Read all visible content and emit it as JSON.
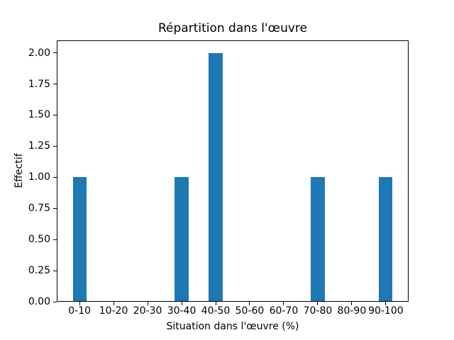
{
  "chart_data": {
    "type": "bar",
    "title": "Répartition dans l'œuvre",
    "xlabel": "Situation dans l'œuvre (%)",
    "ylabel": "Effectif",
    "categories": [
      "0-10",
      "10-20",
      "20-30",
      "30-40",
      "40-50",
      "50-60",
      "60-70",
      "70-80",
      "80-90",
      "90-100"
    ],
    "values": [
      1,
      0,
      0,
      1,
      2,
      0,
      0,
      1,
      0,
      1
    ],
    "yticks": [
      "0.00",
      "0.25",
      "0.50",
      "0.75",
      "1.00",
      "1.25",
      "1.50",
      "1.75",
      "2.00"
    ],
    "ylim": [
      0,
      2.1
    ],
    "xlim": [
      -0.67,
      9.67
    ],
    "bar_width": 0.4,
    "bar_color": "#1f77b4",
    "axis_color": "#000000",
    "background_color": "#ffffff",
    "grid": false,
    "legend": "none"
  }
}
